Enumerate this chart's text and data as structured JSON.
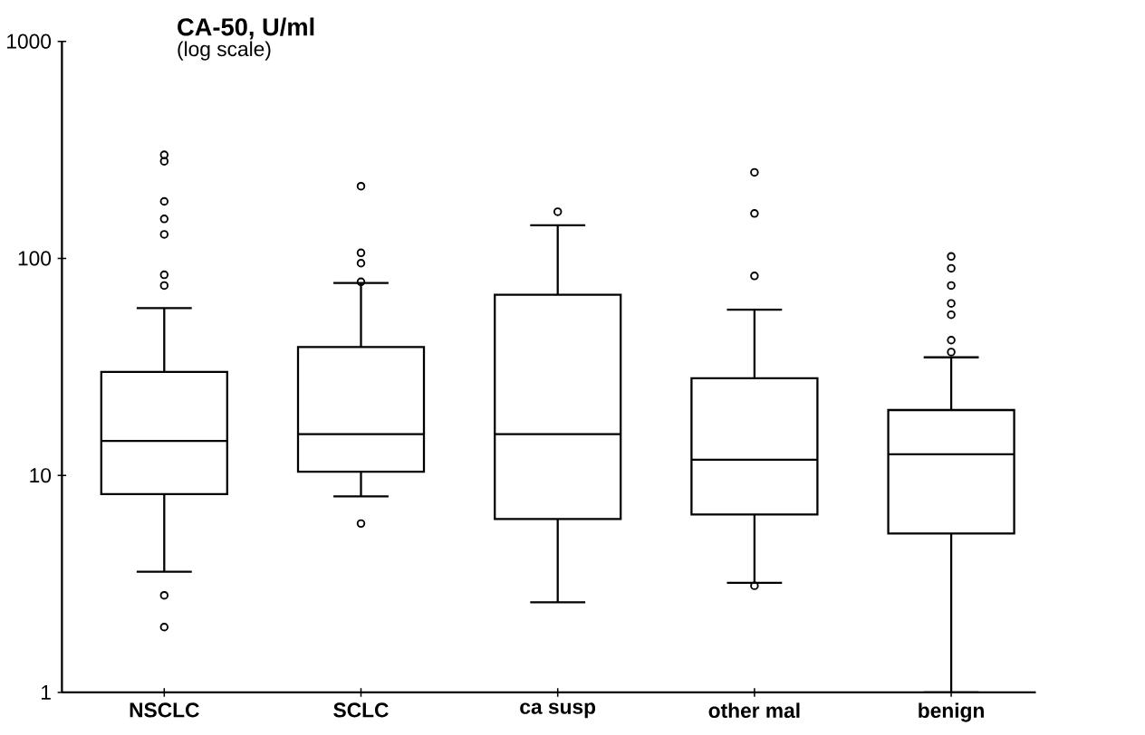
{
  "chart_data": {
    "type": "box",
    "title": "CA-50, U/ml",
    "subtitle": "(log scale)",
    "categories": [
      "NSCLC",
      "SCLC",
      "ca susp",
      "other mal",
      "benign"
    ],
    "boxes": [
      {
        "low": 3.6,
        "q1": 8.2,
        "median": 14.4,
        "q3": 30,
        "high": 59,
        "outliers": [
          2.0,
          2.8,
          75,
          84,
          129,
          152,
          183,
          280,
          300
        ]
      },
      {
        "low": 8.0,
        "q1": 10.4,
        "median": 15.5,
        "q3": 39,
        "high": 77,
        "outliers": [
          6.0,
          78,
          95,
          106,
          215
        ]
      },
      {
        "low": 2.6,
        "q1": 6.3,
        "median": 15.5,
        "q3": 68,
        "high": 142,
        "outliers": [
          164
        ]
      },
      {
        "low": 3.2,
        "q1": 6.6,
        "median": 11.8,
        "q3": 28,
        "high": 58,
        "outliers": [
          3.1,
          83,
          161,
          249
        ]
      },
      {
        "low": 1,
        "q1": 5.4,
        "median": 12.5,
        "q3": 20,
        "high": 35,
        "outliers": [
          37,
          42,
          55,
          62,
          75,
          90,
          102
        ]
      }
    ],
    "color": "#000000",
    "log": "y",
    "ylim": [
      1,
      1000
    ],
    "yticks": [
      1,
      10,
      100,
      1000
    ],
    "marker": "circle"
  }
}
